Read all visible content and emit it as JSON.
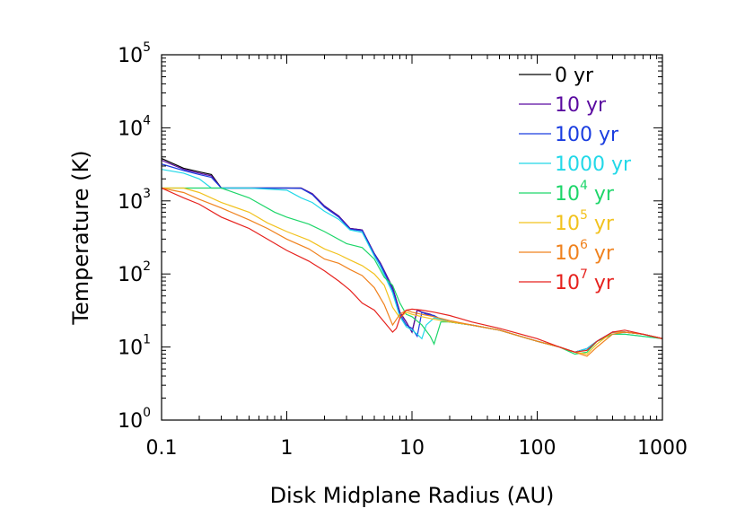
{
  "chart_data": {
    "type": "line",
    "xlabel": "Disk Midplane Radius (AU)",
    "ylabel": "Temperature (K)",
    "x_scale": "log",
    "y_scale": "log",
    "xlim": [
      0.1,
      1000
    ],
    "ylim": [
      1,
      100000
    ],
    "grid": false,
    "legend_position": "top-right",
    "x_ticks": [
      {
        "value": 0.1,
        "label": "0.1"
      },
      {
        "value": 1,
        "label": "1"
      },
      {
        "value": 10,
        "label": "10"
      },
      {
        "value": 100,
        "label": "100"
      },
      {
        "value": 1000,
        "label": "1000"
      }
    ],
    "y_ticks": [
      {
        "value": 1,
        "base": "10",
        "exp": "0"
      },
      {
        "value": 10,
        "base": "10",
        "exp": "1"
      },
      {
        "value": 100,
        "base": "10",
        "exp": "2"
      },
      {
        "value": 1000,
        "base": "10",
        "exp": "3"
      },
      {
        "value": 10000,
        "base": "10",
        "exp": "4"
      },
      {
        "value": 100000,
        "base": "10",
        "exp": "5"
      }
    ],
    "series": [
      {
        "name": "0 yr",
        "color": "#000000",
        "legend": {
          "base": "0",
          "exp": "",
          "unit": "yr"
        },
        "x": [
          0.1,
          0.15,
          0.2,
          0.25,
          0.3,
          0.5,
          1,
          1.3,
          1.6,
          2,
          2.6,
          3.2,
          4,
          5,
          5.6,
          7,
          8,
          9,
          10,
          11,
          12,
          14,
          17,
          20,
          30,
          50,
          100,
          150,
          200,
          250,
          300,
          400,
          500,
          700,
          1000
        ],
        "y": [
          3800,
          2800,
          2500,
          2300,
          1500,
          1500,
          1500,
          1500,
          1250,
          850,
          620,
          420,
          400,
          190,
          140,
          65,
          30,
          22,
          16,
          32,
          30,
          28,
          24,
          22,
          20,
          17,
          12,
          10,
          8.5,
          9.5,
          12,
          16,
          16,
          15,
          13
        ]
      },
      {
        "name": "10 yr",
        "color": "#5a0aa0",
        "legend": {
          "base": "10",
          "exp": "",
          "unit": "yr"
        },
        "x": [
          0.1,
          0.15,
          0.2,
          0.25,
          0.3,
          0.5,
          1,
          1.3,
          1.6,
          2,
          2.6,
          3.2,
          4,
          5,
          5.6,
          7,
          8,
          9,
          10,
          11,
          12,
          14,
          17,
          20,
          30,
          50,
          100,
          150,
          200,
          250,
          300,
          400,
          500,
          700,
          1000
        ],
        "y": [
          3600,
          2700,
          2400,
          2200,
          1500,
          1500,
          1500,
          1500,
          1250,
          850,
          620,
          420,
          400,
          190,
          140,
          65,
          30,
          22,
          16,
          32,
          30,
          28,
          24,
          22,
          20,
          17,
          12,
          10,
          8.5,
          9.5,
          12,
          16,
          16,
          15,
          13
        ]
      },
      {
        "name": "100 yr",
        "color": "#1a3de0",
        "legend": {
          "base": "100",
          "exp": "",
          "unit": "yr"
        },
        "x": [
          0.1,
          0.15,
          0.2,
          0.25,
          0.3,
          0.5,
          1,
          1.3,
          1.6,
          2,
          2.6,
          3.2,
          4,
          5,
          5.6,
          7,
          8,
          9,
          10,
          11,
          12,
          13,
          15,
          17,
          20,
          30,
          50,
          100,
          150,
          200,
          250,
          300,
          400,
          500,
          700,
          1000
        ],
        "y": [
          3200,
          2600,
          2300,
          2100,
          1500,
          1500,
          1500,
          1480,
          1220,
          820,
          600,
          410,
          390,
          185,
          135,
          60,
          28,
          20,
          18,
          14,
          30,
          28,
          27,
          24,
          22,
          20,
          17,
          12,
          10,
          8.5,
          9.5,
          12,
          16,
          16,
          15,
          13
        ]
      },
      {
        "name": "1000 yr",
        "color": "#22d8e8",
        "legend": {
          "base": "1000",
          "exp": "",
          "unit": "yr"
        },
        "x": [
          0.1,
          0.15,
          0.2,
          0.25,
          0.3,
          0.5,
          1,
          1.3,
          1.6,
          2,
          2.6,
          3.2,
          4,
          5,
          5.6,
          7,
          8,
          9,
          10,
          11,
          12,
          13,
          15,
          17,
          20,
          30,
          50,
          100,
          150,
          200,
          250,
          300,
          400,
          500,
          700,
          1000
        ],
        "y": [
          2700,
          2400,
          2000,
          1500,
          1500,
          1500,
          1400,
          1100,
          950,
          720,
          560,
          400,
          370,
          175,
          125,
          55,
          26,
          19,
          17,
          15,
          13,
          20,
          25,
          24,
          22,
          20,
          17,
          12,
          10,
          8.5,
          9.5,
          12,
          15,
          15,
          14,
          13
        ]
      },
      {
        "name": "10^4 yr",
        "color": "#1ed66a",
        "legend": {
          "base": "10",
          "exp": "4",
          "unit": "yr"
        },
        "x": [
          0.1,
          0.2,
          0.3,
          0.5,
          0.8,
          1,
          1.5,
          2,
          3,
          4,
          5,
          6,
          7,
          8,
          9,
          10,
          12,
          14,
          15,
          17,
          20,
          30,
          50,
          100,
          150,
          200,
          250,
          300,
          400,
          500,
          700,
          1000
        ],
        "y": [
          1500,
          1500,
          1500,
          1100,
          700,
          600,
          480,
          380,
          260,
          230,
          160,
          90,
          70,
          40,
          28,
          26,
          20,
          14,
          11,
          22,
          22,
          20,
          17,
          12,
          10,
          8,
          8.5,
          12,
          15,
          15,
          14,
          13
        ]
      },
      {
        "name": "10^5 yr",
        "color": "#f2c21e",
        "legend": {
          "base": "10",
          "exp": "5",
          "unit": "yr"
        },
        "x": [
          0.1,
          0.15,
          0.2,
          0.3,
          0.5,
          0.7,
          1,
          1.5,
          2,
          2.6,
          3.2,
          4,
          5,
          6,
          7,
          8,
          9,
          10,
          12,
          15,
          20,
          30,
          50,
          100,
          150,
          200,
          250,
          300,
          400,
          500,
          700,
          1000
        ],
        "y": [
          1500,
          1500,
          1300,
          950,
          700,
          500,
          380,
          290,
          220,
          185,
          155,
          130,
          100,
          70,
          35,
          25,
          30,
          28,
          26,
          24,
          22,
          20,
          17,
          12,
          10,
          8.5,
          8,
          11,
          16,
          16,
          15,
          13
        ]
      },
      {
        "name": "10^6 yr",
        "color": "#f0821e",
        "legend": {
          "base": "10",
          "exp": "6",
          "unit": "yr"
        },
        "x": [
          0.1,
          0.15,
          0.2,
          0.3,
          0.5,
          0.7,
          1,
          1.5,
          2,
          2.6,
          3.2,
          4,
          5,
          6,
          7,
          8,
          9,
          10,
          12,
          15,
          20,
          30,
          50,
          100,
          150,
          200,
          250,
          300,
          400,
          500,
          700,
          1000
        ],
        "y": [
          1500,
          1300,
          1050,
          800,
          550,
          420,
          300,
          220,
          160,
          140,
          115,
          95,
          65,
          38,
          20,
          28,
          32,
          30,
          28,
          26,
          23,
          20,
          17,
          12,
          10,
          8.5,
          7.5,
          10,
          15,
          16,
          15,
          13
        ]
      },
      {
        "name": "10^7 yr",
        "color": "#e6221e",
        "legend": {
          "base": "10",
          "exp": "7",
          "unit": "yr"
        },
        "x": [
          0.1,
          0.15,
          0.2,
          0.3,
          0.5,
          0.7,
          1,
          1.5,
          2,
          2.6,
          3.2,
          4,
          5,
          6,
          7,
          7.5,
          8,
          9,
          10,
          12,
          15,
          20,
          30,
          50,
          100,
          150,
          200,
          250,
          300,
          400,
          500,
          700,
          1000
        ],
        "y": [
          1500,
          1100,
          900,
          600,
          420,
          300,
          210,
          150,
          110,
          80,
          60,
          40,
          32,
          22,
          16,
          18,
          25,
          32,
          33,
          32,
          30,
          27,
          22,
          18,
          13,
          10,
          8.5,
          9,
          12,
          16,
          17,
          15,
          13
        ]
      }
    ]
  }
}
